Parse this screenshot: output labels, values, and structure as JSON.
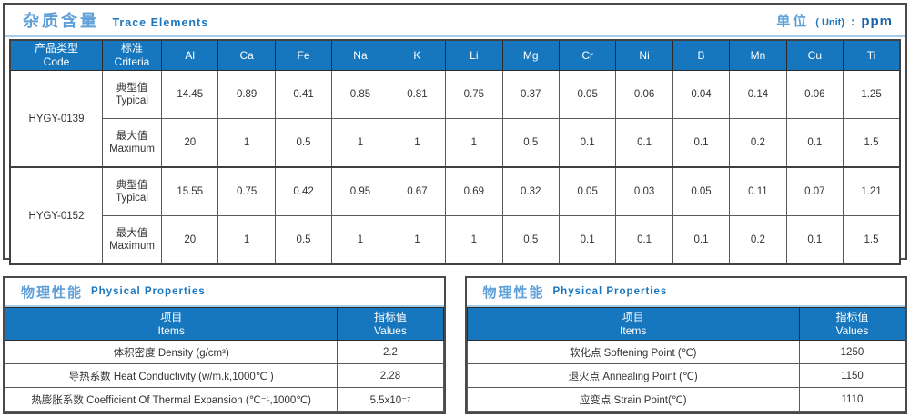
{
  "colors": {
    "header_blue": "#1777BE",
    "title_blue_light": "#5FA0D8",
    "title_blue": "#1B76BE",
    "unit_value_blue": "#1463A8"
  },
  "trace": {
    "title_zh": "杂质含量",
    "title_en": "Trace Elements",
    "unit_zh": "单位",
    "unit_en": "( Unit)",
    "unit_colon": ":",
    "unit_value": "ppm",
    "header": {
      "code_zh": "产品类型",
      "code_en": "Code",
      "criteria_zh": "标准",
      "criteria_en": "Criteria"
    },
    "elements": [
      "Al",
      "Ca",
      "Fe",
      "Na",
      "K",
      "Li",
      "Mg",
      "Cr",
      "Ni",
      "B",
      "Mn",
      "Cu",
      "Ti"
    ],
    "groups": [
      {
        "code": "HYGY-0139",
        "rows": [
          {
            "type_zh": "典型值",
            "type_en": "Typical",
            "values": [
              "14.45",
              "0.89",
              "0.41",
              "0.85",
              "0.81",
              "0.75",
              "0.37",
              "0.05",
              "0.06",
              "0.04",
              "0.14",
              "0.06",
              "1.25"
            ]
          },
          {
            "type_zh": "最大值",
            "type_en": "Maximum",
            "values": [
              "20",
              "1",
              "0.5",
              "1",
              "1",
              "1",
              "0.5",
              "0.1",
              "0.1",
              "0.1",
              "0.2",
              "0.1",
              "1.5"
            ]
          }
        ]
      },
      {
        "code": "HYGY-0152",
        "rows": [
          {
            "type_zh": "典型值",
            "type_en": "Typical",
            "values": [
              "15.55",
              "0.75",
              "0.42",
              "0.95",
              "0.67",
              "0.69",
              "0.32",
              "0.05",
              "0.03",
              "0.05",
              "0.11",
              "0.07",
              "1.21"
            ]
          },
          {
            "type_zh": "最大值",
            "type_en": "Maximum",
            "values": [
              "20",
              "1",
              "0.5",
              "1",
              "1",
              "1",
              "0.5",
              "0.1",
              "0.1",
              "0.1",
              "0.2",
              "0.1",
              "1.5"
            ]
          }
        ]
      }
    ]
  },
  "physical_left": {
    "title_zh": "物理性能",
    "title_en": "Physical Properties",
    "col_item_zh": "项目",
    "col_item_en": "Items",
    "col_value_zh": "指标值",
    "col_value_en": "Values",
    "rows": [
      {
        "item": "体积密度 Density (g/cm³)",
        "value": "2.2"
      },
      {
        "item": "导热系数 Heat Conductivity (w/m.k,1000℃ )",
        "value": "2.28"
      },
      {
        "item": "热膨胀系数 Coefficient Of Thermal Expansion (℃⁻¹,1000℃)",
        "value": "5.5x10⁻⁷"
      }
    ]
  },
  "physical_right": {
    "title_zh": "物理性能",
    "title_en": "Physical Properties",
    "col_item_zh": "项目",
    "col_item_en": "Items",
    "col_value_zh": "指标值",
    "col_value_en": "Values",
    "rows": [
      {
        "item": "软化点 Softening Point (℃)",
        "value": "1250"
      },
      {
        "item": "退火点 Annealing Point (℃)",
        "value": "1150"
      },
      {
        "item": "应变点 Strain Point(℃)",
        "value": "1110"
      }
    ]
  }
}
